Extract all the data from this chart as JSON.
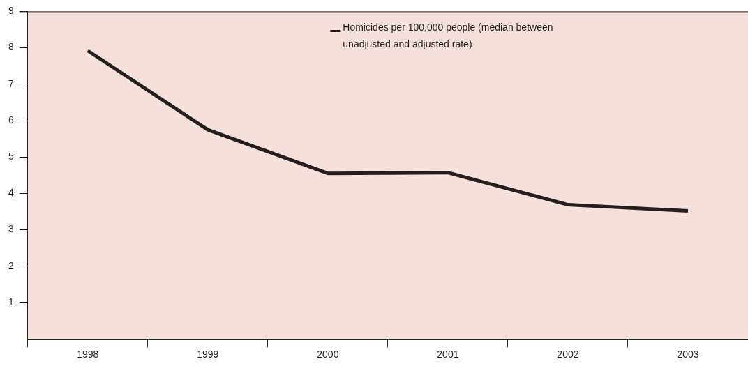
{
  "chart_data": {
    "type": "line",
    "categories": [
      "1998",
      "1999",
      "2000",
      "2001",
      "2002",
      "2003"
    ],
    "series": [
      {
        "name": "Homicides per 100,000 people (median between unadjusted and adjusted rate)",
        "color": "#231f20",
        "values": [
          7.92,
          5.75,
          4.55,
          4.57,
          3.69,
          3.52
        ]
      }
    ],
    "ylim": [
      0,
      9
    ],
    "yticks": [
      1,
      2,
      3,
      4,
      5,
      6,
      7,
      8,
      9
    ],
    "grid": false,
    "legend": "top",
    "marker": "none",
    "line_style": "solid"
  }
}
